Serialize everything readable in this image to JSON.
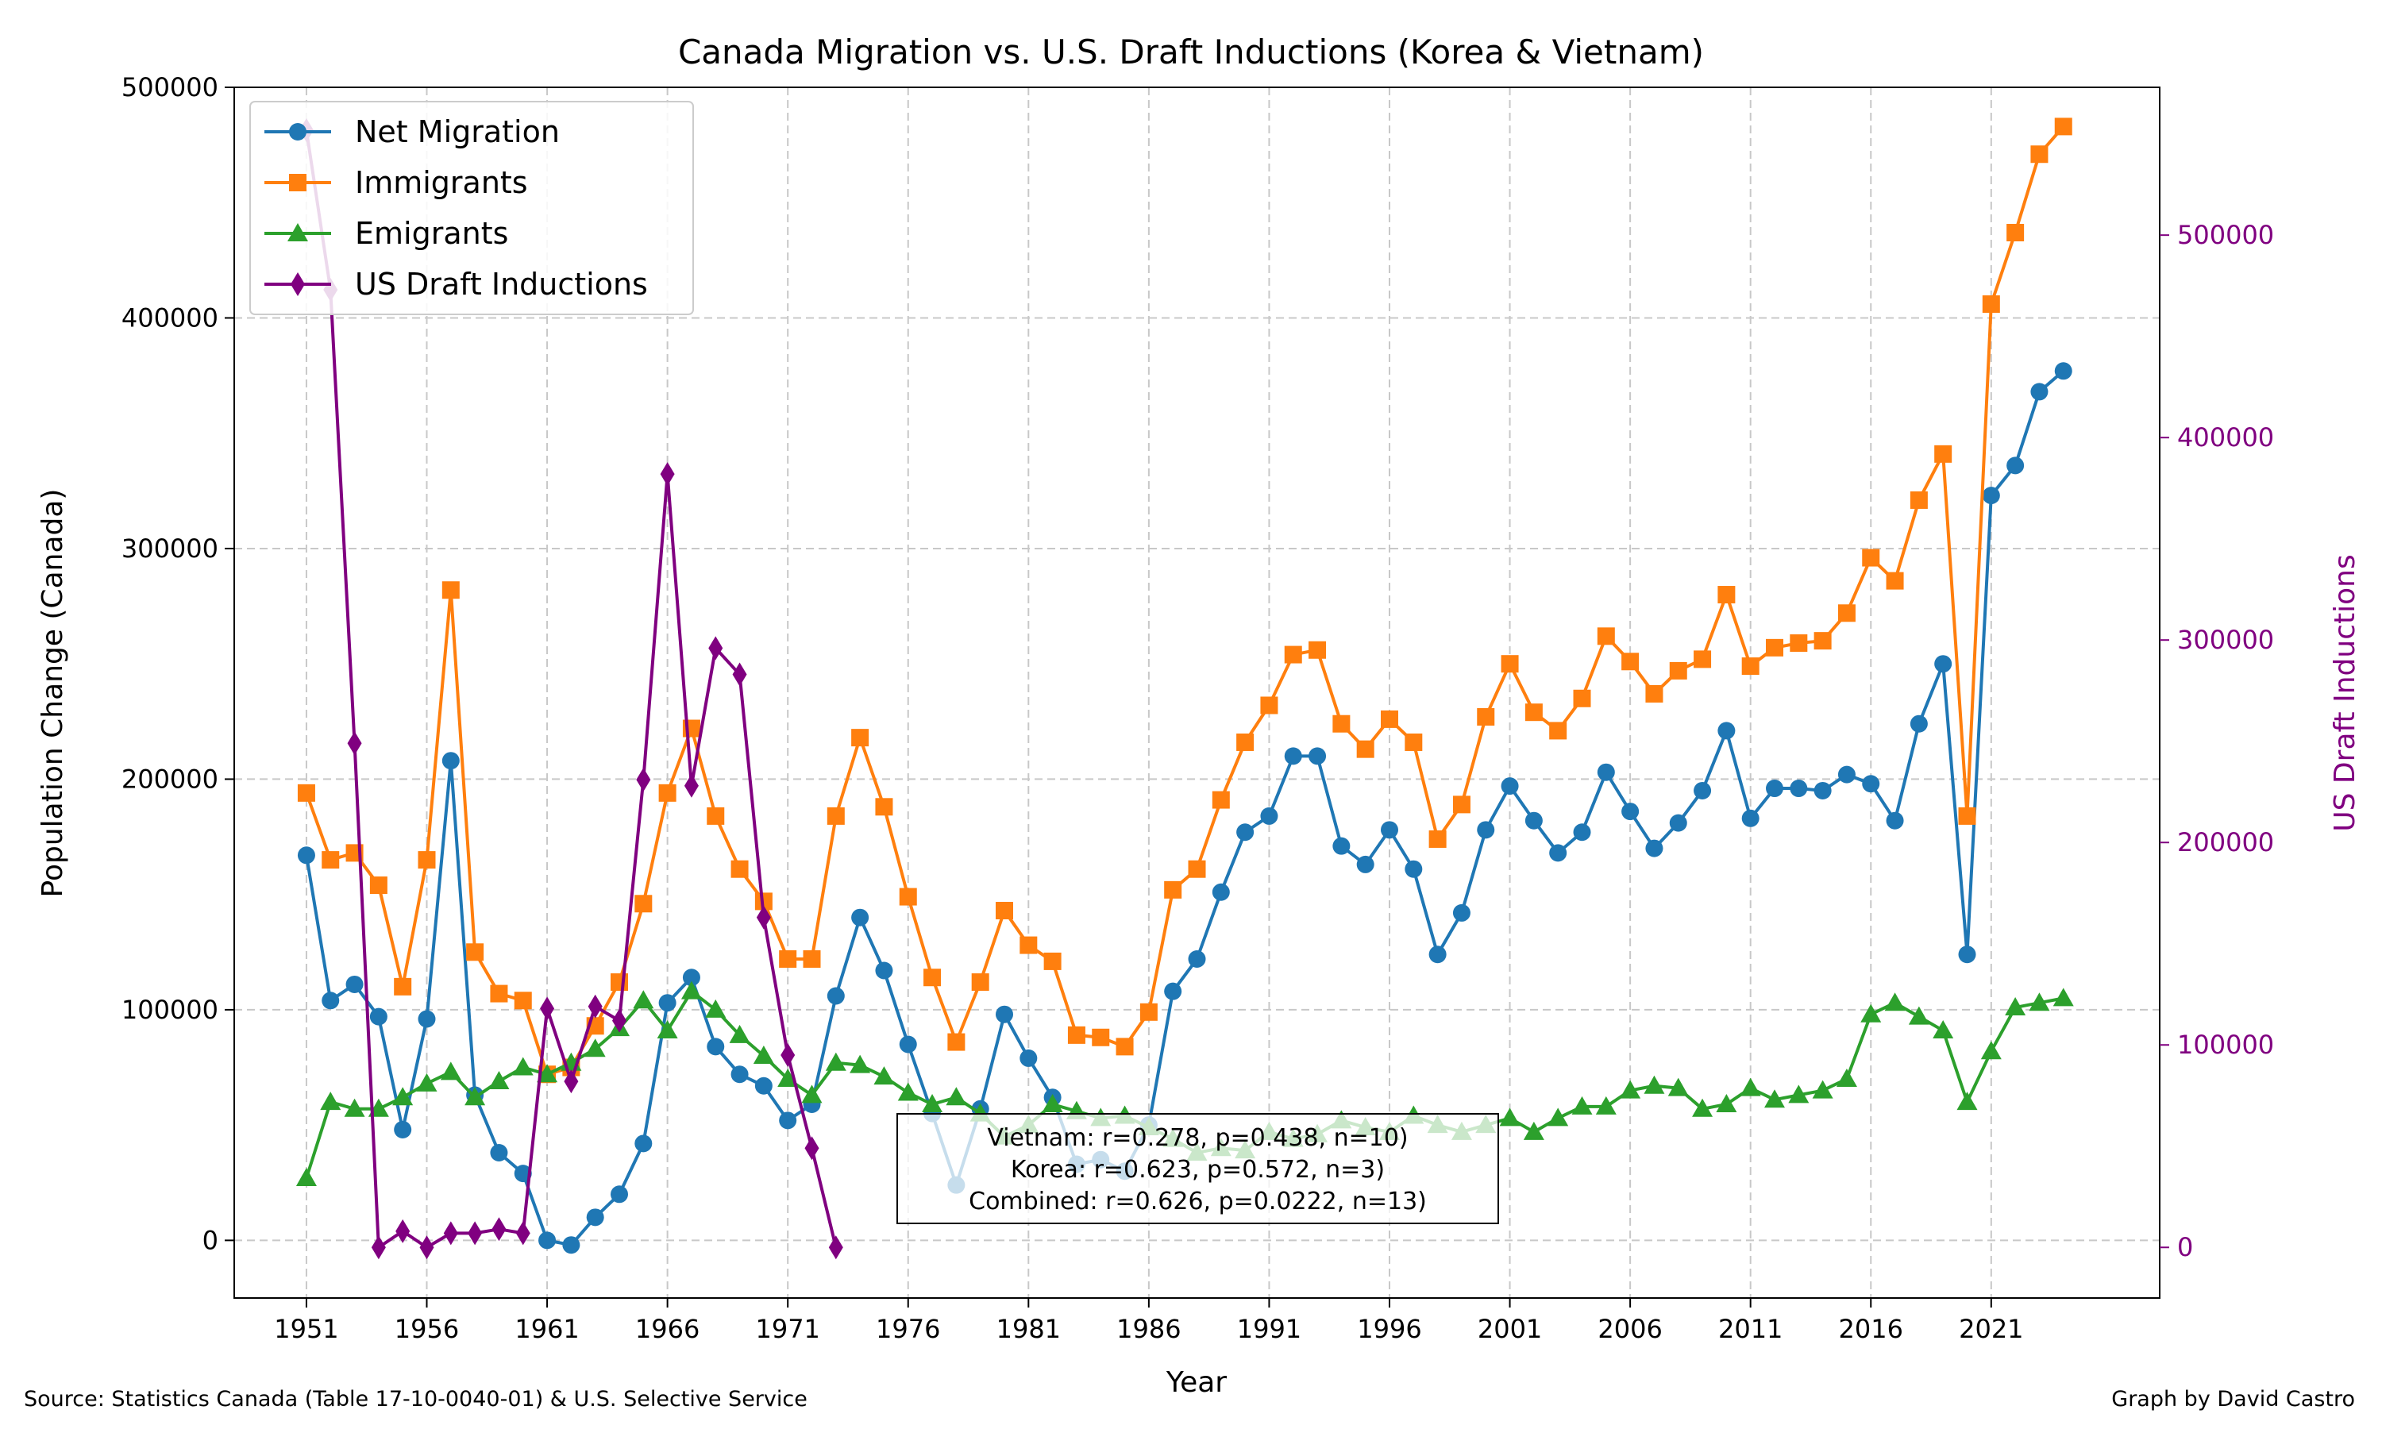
{
  "chart_data": {
    "type": "line",
    "title": "Canada Migration vs. U.S. Draft Inductions (Korea & Vietnam)",
    "xlabel": "Year",
    "ylabel": "Population Change (Canada)",
    "y2label": "US Draft Inductions",
    "xlim": [
      1948,
      2028
    ],
    "ylim": [
      -25000,
      500000
    ],
    "y2lim": [
      -25000,
      573000
    ],
    "xticks": [
      1951,
      1956,
      1961,
      1966,
      1971,
      1976,
      1981,
      1986,
      1991,
      1996,
      2001,
      2006,
      2011,
      2016,
      2021
    ],
    "yticks": [
      0,
      100000,
      200000,
      300000,
      400000,
      500000
    ],
    "y2ticks": [
      0,
      100000,
      200000,
      300000,
      400000,
      500000
    ],
    "grid": true,
    "legend_position": "upper-left",
    "colors": {
      "net": "#1f77b4",
      "immigrants": "#ff7f0e",
      "emigrants": "#2ca02c",
      "draft": "#800080"
    },
    "series": [
      {
        "name": "Net Migration",
        "key": "net",
        "axis": "left",
        "marker": "circle",
        "x": [
          1951,
          1952,
          1953,
          1954,
          1955,
          1956,
          1957,
          1958,
          1959,
          1960,
          1961,
          1962,
          1963,
          1964,
          1965,
          1966,
          1967,
          1968,
          1969,
          1970,
          1971,
          1972,
          1973,
          1974,
          1975,
          1976,
          1977,
          1978,
          1979,
          1980,
          1981,
          1982,
          1983,
          1984,
          1985,
          1986,
          1987,
          1988,
          1989,
          1990,
          1991,
          1992,
          1993,
          1994,
          1995,
          1996,
          1997,
          1998,
          1999,
          2000,
          2001,
          2002,
          2003,
          2004,
          2005,
          2006,
          2007,
          2008,
          2009,
          2010,
          2011,
          2012,
          2013,
          2014,
          2015,
          2016,
          2017,
          2018,
          2019,
          2020,
          2021,
          2022,
          2023,
          2024
        ],
        "values": [
          167000,
          104000,
          111000,
          97000,
          48000,
          96000,
          208000,
          63000,
          38000,
          29000,
          0,
          -2000,
          10000,
          20000,
          42000,
          103000,
          114000,
          84000,
          72000,
          67000,
          52000,
          59000,
          106000,
          140000,
          117000,
          85000,
          55000,
          24000,
          57000,
          98000,
          79000,
          62000,
          33000,
          35000,
          30000,
          50000,
          108000,
          122000,
          151000,
          177000,
          184000,
          210000,
          210000,
          171000,
          163000,
          178000,
          161000,
          124000,
          142000,
          178000,
          197000,
          182000,
          168000,
          177000,
          203000,
          186000,
          170000,
          181000,
          195000,
          221000,
          183000,
          196000,
          196000,
          195000,
          202000,
          198000,
          182000,
          224000,
          250000,
          124000,
          323000,
          336000,
          368000,
          377000
        ]
      },
      {
        "name": "Immigrants",
        "key": "immigrants",
        "axis": "left",
        "marker": "square",
        "x": [
          1951,
          1952,
          1953,
          1954,
          1955,
          1956,
          1957,
          1958,
          1959,
          1960,
          1961,
          1962,
          1963,
          1964,
          1965,
          1966,
          1967,
          1968,
          1969,
          1970,
          1971,
          1972,
          1973,
          1974,
          1975,
          1976,
          1977,
          1978,
          1979,
          1980,
          1981,
          1982,
          1983,
          1984,
          1985,
          1986,
          1987,
          1988,
          1989,
          1990,
          1991,
          1992,
          1993,
          1994,
          1995,
          1996,
          1997,
          1998,
          1999,
          2000,
          2001,
          2002,
          2003,
          2004,
          2005,
          2006,
          2007,
          2008,
          2009,
          2010,
          2011,
          2012,
          2013,
          2014,
          2015,
          2016,
          2017,
          2018,
          2019,
          2020,
          2021,
          2022,
          2023,
          2024
        ],
        "values": [
          194000,
          165000,
          168000,
          154000,
          110000,
          165000,
          282000,
          125000,
          107000,
          104000,
          72000,
          75000,
          93000,
          112000,
          146000,
          194000,
          222000,
          184000,
          161000,
          147000,
          122000,
          122000,
          184000,
          218000,
          188000,
          149000,
          114000,
          86000,
          112000,
          143000,
          128000,
          121000,
          89000,
          88000,
          84000,
          99000,
          152000,
          161000,
          191000,
          216000,
          232000,
          254000,
          256000,
          224000,
          213000,
          226000,
          216000,
          174000,
          189000,
          227000,
          250000,
          229000,
          221000,
          235000,
          262000,
          251000,
          237000,
          247000,
          252000,
          280000,
          249000,
          257000,
          259000,
          260000,
          272000,
          296000,
          286000,
          321000,
          341000,
          184000,
          406000,
          437000,
          471000,
          483000
        ]
      },
      {
        "name": "Emigrants",
        "key": "emigrants",
        "axis": "left",
        "marker": "triangle",
        "x": [
          1951,
          1952,
          1953,
          1954,
          1955,
          1956,
          1957,
          1958,
          1959,
          1960,
          1961,
          1962,
          1963,
          1964,
          1965,
          1966,
          1967,
          1968,
          1969,
          1970,
          1971,
          1972,
          1973,
          1974,
          1975,
          1976,
          1977,
          1978,
          1979,
          1980,
          1981,
          1982,
          1983,
          1984,
          1985,
          1986,
          1987,
          1988,
          1989,
          1990,
          1991,
          1992,
          1993,
          1994,
          1995,
          1996,
          1997,
          1998,
          1999,
          2000,
          2001,
          2002,
          2003,
          2004,
          2005,
          2006,
          2007,
          2008,
          2009,
          2010,
          2011,
          2012,
          2013,
          2014,
          2015,
          2016,
          2017,
          2018,
          2019,
          2020,
          2021,
          2022,
          2023,
          2024
        ],
        "values": [
          27000,
          60000,
          57000,
          57000,
          62000,
          68000,
          73000,
          62000,
          69000,
          75000,
          72000,
          77000,
          83000,
          92000,
          104000,
          91000,
          108000,
          100000,
          89000,
          80000,
          70000,
          63000,
          77000,
          76000,
          71000,
          64000,
          59000,
          62000,
          55000,
          45000,
          50000,
          59000,
          56000,
          53000,
          54000,
          49000,
          44000,
          38000,
          40000,
          39000,
          47000,
          44000,
          46000,
          52000,
          49000,
          47000,
          54000,
          50000,
          47000,
          50000,
          53000,
          47000,
          53000,
          58000,
          58000,
          65000,
          67000,
          66000,
          57000,
          59000,
          66000,
          61000,
          63000,
          65000,
          70000,
          98000,
          103000,
          97000,
          91000,
          60000,
          82000,
          101000,
          103000,
          105000
        ]
      },
      {
        "name": "US Draft Inductions",
        "key": "draft",
        "axis": "right",
        "marker": "diamond",
        "x": [
          1951,
          1952,
          1953,
          1954,
          1955,
          1956,
          1957,
          1958,
          1959,
          1960,
          1961,
          1962,
          1963,
          1964,
          1965,
          1966,
          1967,
          1968,
          1969,
          1970,
          1971,
          1972,
          1973
        ],
        "values": [
          551806,
          473000,
          249000,
          0,
          8000,
          0,
          7000,
          7000,
          9000,
          7000,
          118000,
          82000,
          119000,
          112000,
          231000,
          382000,
          228000,
          296000,
          283000,
          163000,
          95000,
          49000,
          0
        ]
      }
    ],
    "annotation": [
      "Vietnam: r=0.278, p=0.438, n=10)",
      "Korea: r=0.623, p=0.572, n=3)",
      "Combined: r=0.626, p=0.0222, n=13)"
    ]
  },
  "footer": {
    "source": "Source: Statistics Canada (Table 17-10-0040-01) & U.S. Selective Service",
    "credit": "Graph by David Castro"
  }
}
